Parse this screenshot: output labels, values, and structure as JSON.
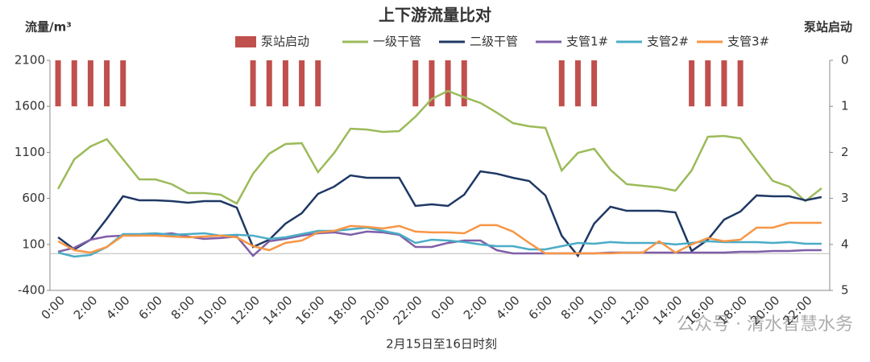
{
  "chart_data": {
    "type": "line",
    "title": "上下游流量比对",
    "y_label": "流量/m³",
    "y2_label": "泵站启动",
    "x_label": "2月15日至16日时刻",
    "categories": [
      "0:00",
      null,
      "2:00",
      null,
      "4:00",
      null,
      "6:00",
      null,
      "8:00",
      null,
      "10:00",
      null,
      "12:00",
      null,
      "14:00",
      null,
      "16:00",
      null,
      "18:00",
      null,
      "20:00",
      null,
      "22:00",
      null,
      "0:00",
      null,
      "2:00",
      null,
      "4:00",
      null,
      "6:00",
      null,
      "8:00",
      null,
      "10:00",
      null,
      "12:00",
      null,
      "14:00",
      null,
      "16:00",
      null,
      "18:00",
      null,
      "20:00",
      null,
      "22:00",
      null
    ],
    "ylim": [
      -400,
      2100
    ],
    "yticks": [
      -400,
      100,
      600,
      1100,
      1600,
      2100
    ],
    "y2lim": [
      0,
      5
    ],
    "y2ticks": [
      0,
      1,
      2,
      3,
      4,
      5
    ],
    "y2_inverted": true,
    "series": [
      {
        "name": "泵站启动",
        "type": "bar",
        "axis": "y2",
        "color": "#c0504d",
        "values": [
          1,
          1,
          1,
          1,
          1,
          0,
          0,
          0,
          0,
          0,
          0,
          0,
          1,
          1,
          1,
          1,
          1,
          0,
          0,
          0,
          0,
          0,
          1,
          1,
          1,
          1,
          0,
          0,
          0,
          0,
          0,
          1,
          1,
          1,
          0,
          0,
          0,
          0,
          0,
          1,
          1,
          1,
          1,
          0,
          0,
          0,
          0,
          0
        ]
      },
      {
        "name": "一级干管",
        "color": "#9bbb59",
        "values": [
          702,
          1025,
          1165,
          1243,
          1025,
          806,
          806,
          754,
          658,
          658,
          640,
          544,
          868,
          1086,
          1191,
          1200,
          885,
          1095,
          1357,
          1348,
          1322,
          1331,
          1488,
          1680,
          1768,
          1698,
          1637,
          1532,
          1418,
          1383,
          1366,
          903,
          1095,
          1139,
          911,
          754,
          736,
          719,
          684,
          903,
          1270,
          1278,
          1252,
          1016,
          789,
          728,
          570,
          710
        ]
      },
      {
        "name": "二级干管",
        "color": "#1f3864",
        "values": [
          177,
          46,
          151,
          378,
          623,
          579,
          579,
          570,
          553,
          570,
          570,
          500,
          72,
          151,
          326,
          439,
          649,
          728,
          850,
          824,
          824,
          824,
          518,
          535,
          518,
          640,
          894,
          868,
          824,
          789,
          632,
          195,
          -24,
          326,
          509,
          465,
          465,
          465,
          448,
          28,
          151,
          369,
          457,
          632,
          623,
          623,
          579,
          614
        ]
      },
      {
        "name": "支管1#",
        "color": "#7f5fa8",
        "values": [
          20,
          64,
          151,
          186,
          195,
          195,
          204,
          221,
          186,
          160,
          169,
          186,
          -24,
          134,
          160,
          195,
          221,
          230,
          204,
          239,
          230,
          204,
          72,
          72,
          116,
          142,
          142,
          37,
          2,
          2,
          2,
          2,
          2,
          2,
          11,
          11,
          11,
          11,
          11,
          11,
          11,
          11,
          20,
          20,
          28,
          28,
          37,
          37
        ]
      },
      {
        "name": "支管2#",
        "color": "#4bacc6",
        "values": [
          11,
          -33,
          -15,
          72,
          212,
          212,
          221,
          204,
          212,
          221,
          195,
          204,
          195,
          160,
          177,
          212,
          247,
          247,
          264,
          282,
          247,
          212,
          116,
          151,
          142,
          125,
          99,
          81,
          81,
          46,
          46,
          81,
          116,
          107,
          125,
          116,
          116,
          116,
          99,
          116,
          134,
          125,
          125,
          125,
          116,
          125,
          107,
          107
        ]
      },
      {
        "name": "支管3#",
        "color": "#f79646",
        "values": [
          134,
          37,
          11,
          72,
          195,
          195,
          195,
          186,
          177,
          186,
          195,
          177,
          81,
          37,
          116,
          142,
          230,
          247,
          300,
          291,
          273,
          300,
          239,
          230,
          230,
          221,
          309,
          309,
          239,
          116,
          2,
          2,
          2,
          2,
          2,
          11,
          11,
          134,
          11,
          99,
          169,
          134,
          151,
          282,
          282,
          334,
          334,
          334
        ]
      }
    ],
    "watermark": "公众号 · 清水智慧水务"
  }
}
